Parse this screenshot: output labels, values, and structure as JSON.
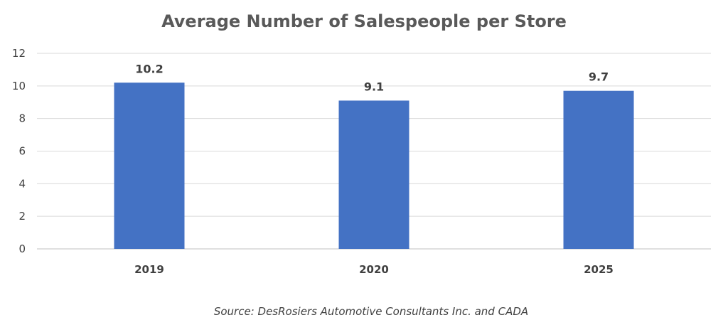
{
  "chart_data": {
    "type": "bar",
    "title": "Average Number of Salespeople per Store",
    "categories": [
      "2019",
      "2020",
      "2025"
    ],
    "values": [
      10.2,
      9.1,
      9.7
    ],
    "data_labels": [
      "10.2",
      "9.1",
      "9.7"
    ],
    "ylim": [
      0,
      12
    ],
    "yticks": [
      0,
      2,
      4,
      6,
      8,
      10,
      12
    ],
    "ytick_labels": [
      "0",
      "2",
      "4",
      "6",
      "8",
      "10",
      "12"
    ],
    "grid": true,
    "legend": "none",
    "bar_color": "#4472C4",
    "source": "Source: DesRosiers Automotive Consultants Inc. and CADA"
  }
}
